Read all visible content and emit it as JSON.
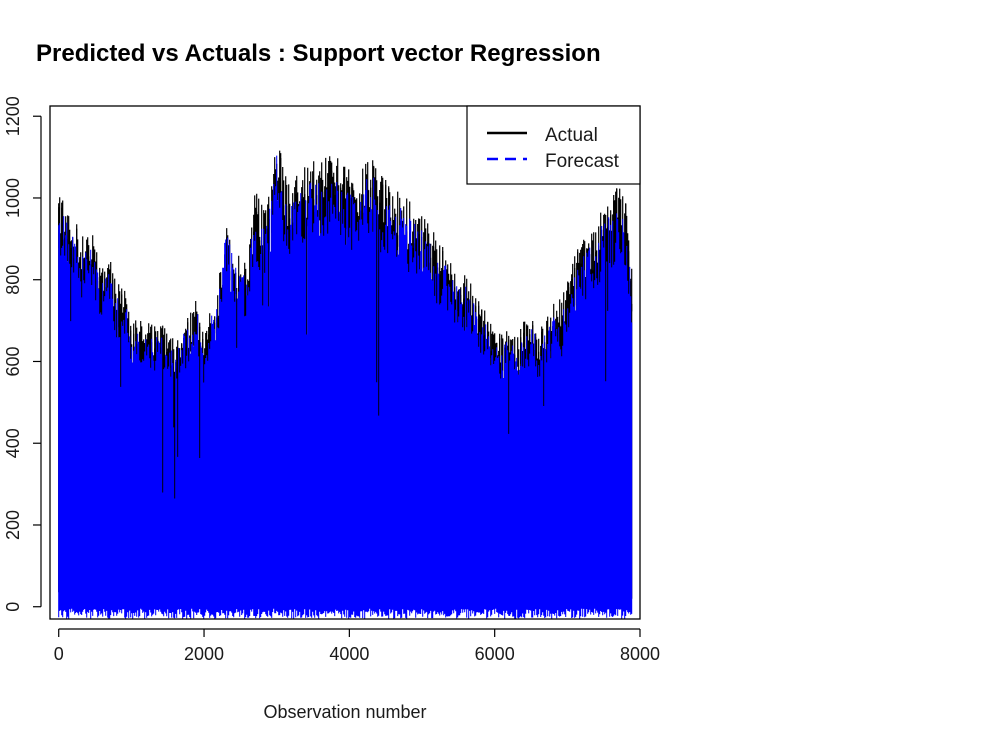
{
  "chart_data": {
    "type": "line",
    "title": "Predicted vs Actuals : Support vector Regression",
    "xlabel": "Observation number",
    "ylabel": "",
    "xlim": [
      -120,
      8000
    ],
    "ylim": [
      -30,
      1225
    ],
    "xticks": [
      0,
      2000,
      4000,
      6000,
      8000
    ],
    "yticks": [
      0,
      200,
      400,
      600,
      800,
      1000,
      1200
    ],
    "grid": false,
    "legend_position": "top-right",
    "n_observations": 7880,
    "series": [
      {
        "name": "Actual",
        "color": "#000000",
        "line_style": "solid",
        "envelope_x": [
          0,
          100,
          200,
          300,
          400,
          500,
          600,
          700,
          800,
          900,
          1000,
          1100,
          1200,
          1300,
          1400,
          1500,
          1600,
          1700,
          1800,
          1900,
          2000,
          2100,
          2200,
          2300,
          2400,
          2500,
          2600,
          2700,
          2800,
          2900,
          3000,
          3100,
          3200,
          3300,
          3400,
          3500,
          3600,
          3700,
          3800,
          3900,
          4000,
          4100,
          4200,
          4300,
          4400,
          4500,
          4600,
          4700,
          4800,
          4900,
          5000,
          5100,
          5200,
          5300,
          5400,
          5500,
          5600,
          5700,
          5800,
          5900,
          6000,
          6100,
          6200,
          6300,
          6400,
          6500,
          6600,
          6700,
          6800,
          6900,
          7000,
          7100,
          7200,
          7300,
          7400,
          7500,
          7600,
          7700,
          7800,
          7880
        ],
        "envelope_max": [
          1020,
          990,
          960,
          920,
          930,
          900,
          850,
          860,
          800,
          780,
          730,
          710,
          700,
          690,
          700,
          690,
          650,
          700,
          720,
          760,
          660,
          760,
          800,
          960,
          900,
          870,
          860,
          1020,
          980,
          1020,
          1170,
          1060,
          1040,
          1060,
          1080,
          1090,
          1100,
          1110,
          1110,
          1080,
          1070,
          1050,
          1080,
          1110,
          1060,
          1050,
          1030,
          1020,
          1000,
          980,
          960,
          940,
          900,
          880,
          850,
          840,
          820,
          780,
          740,
          720,
          690,
          670,
          680,
          680,
          700,
          720,
          680,
          700,
          740,
          760,
          800,
          860,
          900,
          920,
          940,
          990,
          1000,
          1040,
          990,
          840
        ],
        "typical_min": 0
      },
      {
        "name": "Forecast",
        "color": "#0000ff",
        "line_style": "dashed",
        "typical_min": -30
      }
    ]
  }
}
